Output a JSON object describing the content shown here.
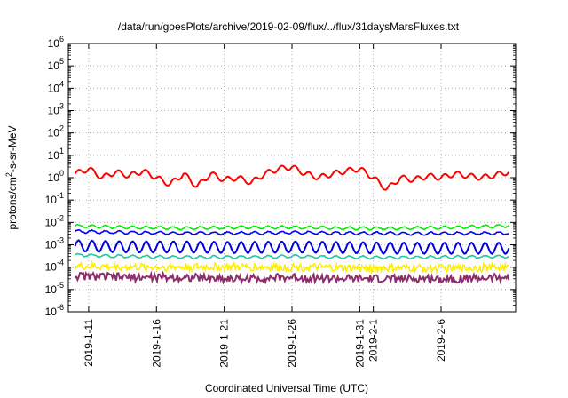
{
  "chart_data": {
    "type": "line",
    "title": "/data/run/goesPlots/archive/2019-02-09/flux/../flux/31daysMarsFluxes.txt",
    "xlabel": "Coordinated Universal Time (UTC)",
    "ylabel_parts": {
      "base": "protons/cm",
      "sup": "2",
      "rest": "-s-sr-MeV"
    },
    "y_scale": "log",
    "ylim": [
      1e-06,
      1000000.0
    ],
    "xlim": [
      "2019-01-09T12:00",
      "2019-02-11T12:00"
    ],
    "grid": true,
    "legend": "none",
    "y_ticks": [
      {
        "value": 1e-06,
        "base": "10",
        "exp": "-6"
      },
      {
        "value": 1e-05,
        "base": "10",
        "exp": "-5"
      },
      {
        "value": 0.0001,
        "base": "10",
        "exp": "-4"
      },
      {
        "value": 0.001,
        "base": "10",
        "exp": "-3"
      },
      {
        "value": 0.01,
        "base": "10",
        "exp": "-2"
      },
      {
        "value": 0.1,
        "base": "10",
        "exp": "-1"
      },
      {
        "value": 1.0,
        "base": "10",
        "exp": "0"
      },
      {
        "value": 10.0,
        "base": "10",
        "exp": "1"
      },
      {
        "value": 100.0,
        "base": "10",
        "exp": "2"
      },
      {
        "value": 1000.0,
        "base": "10",
        "exp": "3"
      },
      {
        "value": 10000.0,
        "base": "10",
        "exp": "4"
      },
      {
        "value": 100000.0,
        "base": "10",
        "exp": "5"
      },
      {
        "value": 1000000.0,
        "base": "10",
        "exp": "6"
      }
    ],
    "x_ticks": [
      {
        "date": "2019-01-11",
        "label": "2019-1-11"
      },
      {
        "date": "2019-01-16",
        "label": "2019-1-16"
      },
      {
        "date": "2019-01-21",
        "label": "2019-1-21"
      },
      {
        "date": "2019-01-26",
        "label": "2019-1-26"
      },
      {
        "date": "2019-01-31",
        "label": "2019-1-31"
      },
      {
        "date": "2019-02-01",
        "label": "2019-2-1"
      },
      {
        "date": "2019-02-06",
        "label": "2019-2-6"
      }
    ],
    "series": [
      {
        "color": "#ff0000",
        "x": [
          "2019-01-10",
          "2019-01-11",
          "2019-01-12",
          "2019-01-13",
          "2019-01-14",
          "2019-01-15",
          "2019-01-16",
          "2019-01-17",
          "2019-01-18",
          "2019-01-19",
          "2019-01-20",
          "2019-01-21",
          "2019-01-22",
          "2019-01-23",
          "2019-01-24",
          "2019-01-25",
          "2019-01-26",
          "2019-01-27",
          "2019-01-28",
          "2019-01-29",
          "2019-01-30",
          "2019-01-31",
          "2019-02-01",
          "2019-02-02",
          "2019-02-03",
          "2019-02-04",
          "2019-02-05",
          "2019-02-06",
          "2019-02-07",
          "2019-02-08",
          "2019-02-09",
          "2019-02-10",
          "2019-02-11"
        ],
        "y": [
          1.5,
          2.5,
          1.0,
          1.8,
          1.2,
          2.0,
          1.0,
          0.5,
          1.5,
          0.4,
          1.5,
          0.8,
          1.0,
          0.6,
          1.5,
          2.5,
          3.0,
          1.5,
          1.0,
          1.5,
          2.0,
          2.5,
          1.0,
          0.3,
          1.0,
          0.8,
          1.2,
          1.0,
          1.5,
          1.2,
          1.0,
          1.3,
          1.8
        ]
      },
      {
        "color": "#00ee00",
        "x": [
          "2019-01-10",
          "2019-01-14",
          "2019-01-18",
          "2019-01-22",
          "2019-01-26",
          "2019-01-30",
          "2019-02-03",
          "2019-02-07",
          "2019-02-11"
        ],
        "y": [
          0.007,
          0.006,
          0.0055,
          0.006,
          0.006,
          0.0055,
          0.0055,
          0.006,
          0.007
        ]
      },
      {
        "color": "#0000ff",
        "x": [
          "2019-01-10",
          "2019-01-14",
          "2019-01-18",
          "2019-01-22",
          "2019-01-26",
          "2019-01-30",
          "2019-02-03",
          "2019-02-07",
          "2019-02-11"
        ],
        "y": [
          0.004,
          0.0035,
          0.0033,
          0.0033,
          0.0035,
          0.0033,
          0.0032,
          0.0032,
          0.0033
        ]
      },
      {
        "color": "#0000dd",
        "x": [
          "2019-01-10",
          "2019-01-14",
          "2019-01-18",
          "2019-01-22",
          "2019-01-26",
          "2019-01-30",
          "2019-02-03",
          "2019-02-07",
          "2019-02-11"
        ],
        "y": [
          0.0009,
          0.0008,
          0.0008,
          0.00075,
          0.0008,
          0.00075,
          0.0007,
          0.0007,
          0.0007
        ]
      },
      {
        "color": "#20c8a0",
        "x": [
          "2019-01-10",
          "2019-01-14",
          "2019-01-18",
          "2019-01-22",
          "2019-01-26",
          "2019-01-30",
          "2019-02-03",
          "2019-02-07",
          "2019-02-11"
        ],
        "y": [
          0.00035,
          0.0003,
          0.00028,
          0.00028,
          0.0003,
          0.00028,
          0.00027,
          0.00028,
          0.0003
        ]
      },
      {
        "color": "#ffee00",
        "x": [
          "2019-01-10",
          "2019-01-14",
          "2019-01-18",
          "2019-01-22",
          "2019-01-26",
          "2019-01-30",
          "2019-02-03",
          "2019-02-07",
          "2019-02-11"
        ],
        "y": [
          0.00011,
          0.0001,
          0.0001,
          0.0001,
          0.0001,
          9e-05,
          9e-05,
          9e-05,
          0.0001
        ]
      },
      {
        "color": "#8b2e6a",
        "x": [
          "2019-01-10",
          "2019-01-14",
          "2019-01-18",
          "2019-01-22",
          "2019-01-26",
          "2019-01-30",
          "2019-02-03",
          "2019-02-07",
          "2019-02-11"
        ],
        "y": [
          4e-05,
          3.5e-05,
          3.5e-05,
          3e-05,
          3.5e-05,
          3e-05,
          3e-05,
          3e-05,
          3.5e-05
        ]
      }
    ]
  }
}
